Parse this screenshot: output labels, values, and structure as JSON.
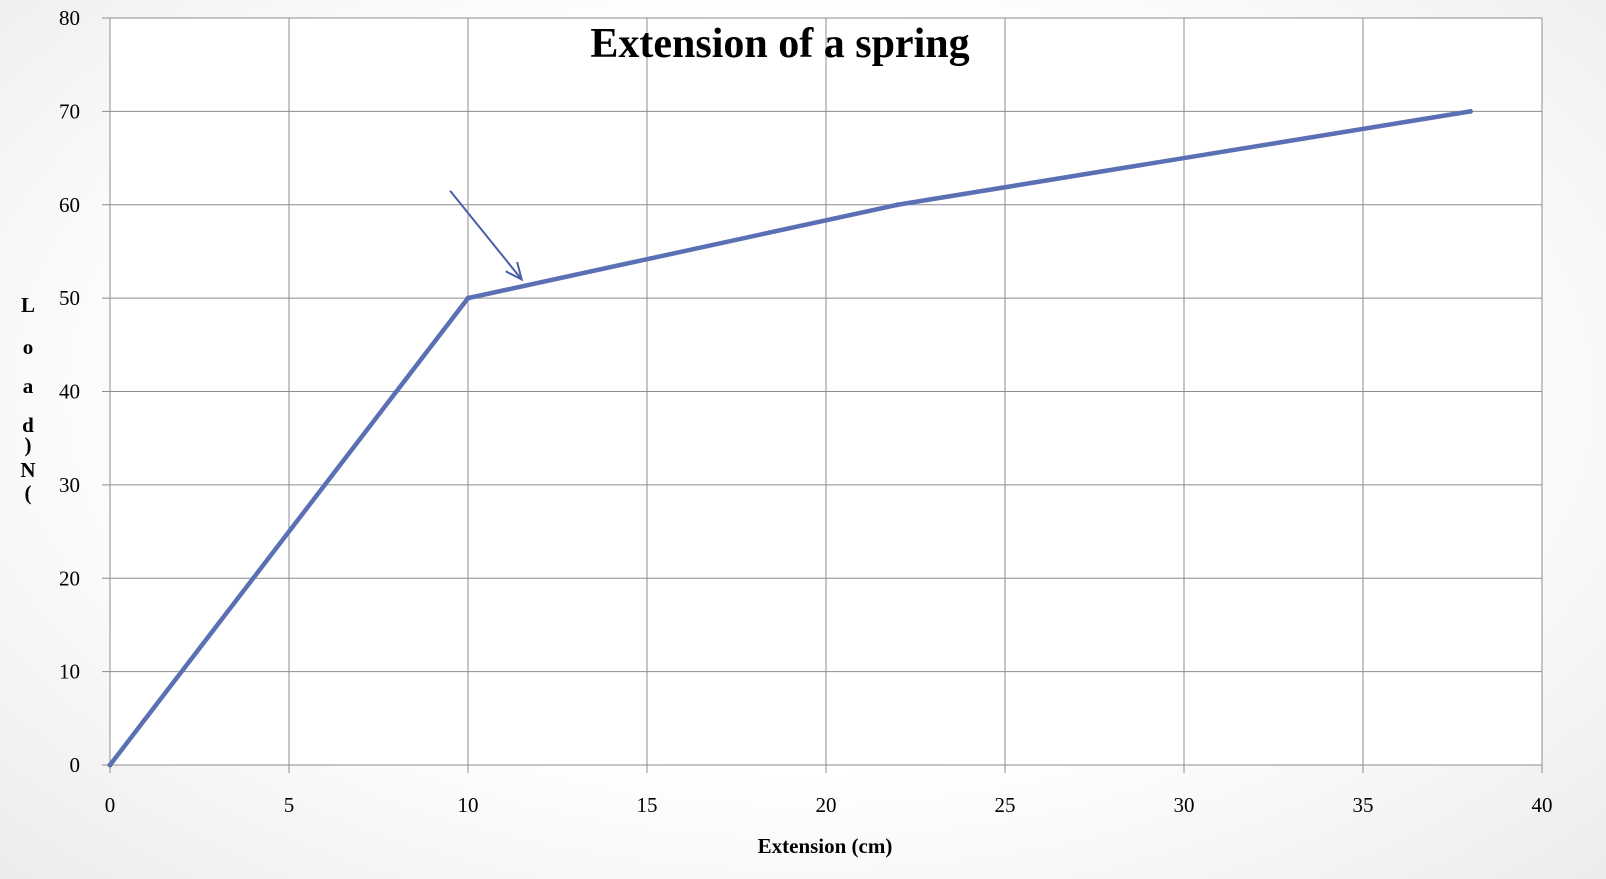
{
  "chart_data": {
    "type": "line",
    "title": "Extension of a spring",
    "xlabel": "Extension (cm)",
    "ylabel": "Load (N)",
    "xlim": [
      0,
      40
    ],
    "ylim": [
      0,
      80
    ],
    "xticks": [
      0,
      5,
      10,
      15,
      20,
      25,
      30,
      35,
      40
    ],
    "yticks": [
      0,
      10,
      20,
      30,
      40,
      50,
      60,
      70,
      80
    ],
    "grid": true,
    "legend": "none",
    "series": [
      {
        "x": [
          0,
          10,
          22,
          38
        ],
        "y": [
          0,
          50,
          60,
          70
        ],
        "color": "#5b6fb5"
      }
    ],
    "annotations": [
      {
        "type": "arrow",
        "from": [
          9.5,
          61.5
        ],
        "to": [
          11.5,
          52
        ],
        "color": "#4a5fa8"
      }
    ]
  }
}
